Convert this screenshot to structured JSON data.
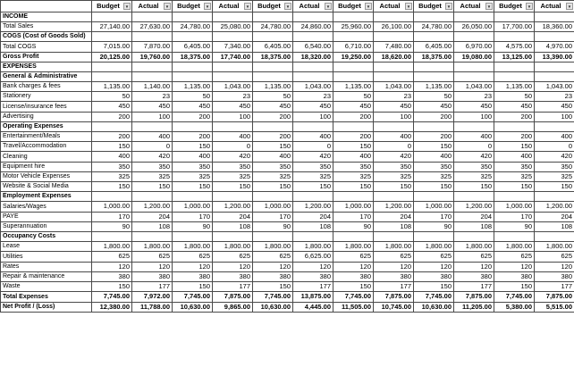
{
  "icons": {
    "filter_dropdown": "▼"
  },
  "table": {
    "columns": [
      "Budget",
      "Actual",
      "Budget",
      "Actual",
      "Budget",
      "Actual",
      "Budget",
      "Actual",
      "Budget",
      "Actual",
      "Budget",
      "Actual"
    ],
    "rows": [
      {
        "label": "INCOME",
        "type": "section",
        "values": []
      },
      {
        "label": "Total Sales",
        "type": "data",
        "values": [
          "27,140.00",
          "27,630.00",
          "24,780.00",
          "25,080.00",
          "24,780.00",
          "24,860.00",
          "25,960.00",
          "26,100.00",
          "24,780.00",
          "26,050.00",
          "17,700.00",
          "18,360.00"
        ]
      },
      {
        "label": "COGS (Cost of Goods Sold)",
        "type": "section",
        "values": []
      },
      {
        "label": "Total COGS",
        "type": "data",
        "values": [
          "7,015.00",
          "7,870.00",
          "6,405.00",
          "7,340.00",
          "6,405.00",
          "6,540.00",
          "6,710.00",
          "7,480.00",
          "6,405.00",
          "6,970.00",
          "4,575.00",
          "4,970.00"
        ]
      },
      {
        "label": "Gross Profit",
        "type": "total",
        "values": [
          "20,125.00",
          "19,760.00",
          "18,375.00",
          "17,740.00",
          "18,375.00",
          "18,320.00",
          "19,250.00",
          "18,620.00",
          "18,375.00",
          "19,080.00",
          "13,125.00",
          "13,390.00"
        ]
      },
      {
        "label": "EXPENSES",
        "type": "section",
        "values": []
      },
      {
        "label": "General & Administrative",
        "type": "section",
        "values": []
      },
      {
        "label": "Bank charges & fees",
        "type": "data",
        "values": [
          "1,135.00",
          "1,140.00",
          "1,135.00",
          "1,043.00",
          "1,135.00",
          "1,043.00",
          "1,135.00",
          "1,043.00",
          "1,135.00",
          "1,043.00",
          "1,135.00",
          "1,043.00"
        ]
      },
      {
        "label": "Stationery",
        "type": "data",
        "values": [
          "50",
          "23",
          "50",
          "23",
          "50",
          "23",
          "50",
          "23",
          "50",
          "23",
          "50",
          "23"
        ]
      },
      {
        "label": "License/insurance fees",
        "type": "data",
        "values": [
          "450",
          "450",
          "450",
          "450",
          "450",
          "450",
          "450",
          "450",
          "450",
          "450",
          "450",
          "450"
        ]
      },
      {
        "label": "Advertising",
        "type": "data",
        "values": [
          "200",
          "100",
          "200",
          "100",
          "200",
          "100",
          "200",
          "100",
          "200",
          "100",
          "200",
          "100"
        ]
      },
      {
        "label": "Operating Expenses",
        "type": "section",
        "values": []
      },
      {
        "label": "Entertainment/Meals",
        "type": "data",
        "values": [
          "200",
          "400",
          "200",
          "400",
          "200",
          "400",
          "200",
          "400",
          "200",
          "400",
          "200",
          "400"
        ]
      },
      {
        "label": "Travel/Accommodation",
        "type": "data",
        "values": [
          "150",
          "0",
          "150",
          "0",
          "150",
          "0",
          "150",
          "0",
          "150",
          "0",
          "150",
          "0"
        ]
      },
      {
        "label": "Cleaning",
        "type": "data",
        "values": [
          "400",
          "420",
          "400",
          "420",
          "400",
          "420",
          "400",
          "420",
          "400",
          "420",
          "400",
          "420"
        ]
      },
      {
        "label": "Equipment hire",
        "type": "data",
        "values": [
          "350",
          "350",
          "350",
          "350",
          "350",
          "350",
          "350",
          "350",
          "350",
          "350",
          "350",
          "350"
        ]
      },
      {
        "label": "Motor Vehicle Expenses",
        "type": "data",
        "values": [
          "325",
          "325",
          "325",
          "325",
          "325",
          "325",
          "325",
          "325",
          "325",
          "325",
          "325",
          "325"
        ]
      },
      {
        "label": "Website & Social Media",
        "type": "data",
        "values": [
          "150",
          "150",
          "150",
          "150",
          "150",
          "150",
          "150",
          "150",
          "150",
          "150",
          "150",
          "150"
        ]
      },
      {
        "label": "Employment Expenses",
        "type": "section",
        "values": []
      },
      {
        "label": "Salaries/Wages",
        "type": "data",
        "values": [
          "1,000.00",
          "1,200.00",
          "1,000.00",
          "1,200.00",
          "1,000.00",
          "1,200.00",
          "1,000.00",
          "1,200.00",
          "1,000.00",
          "1,200.00",
          "1,000.00",
          "1,200.00"
        ]
      },
      {
        "label": "PAYE",
        "type": "data",
        "values": [
          "170",
          "204",
          "170",
          "204",
          "170",
          "204",
          "170",
          "204",
          "170",
          "204",
          "170",
          "204"
        ]
      },
      {
        "label": "Superannuation",
        "type": "data",
        "values": [
          "90",
          "108",
          "90",
          "108",
          "90",
          "108",
          "90",
          "108",
          "90",
          "108",
          "90",
          "108"
        ]
      },
      {
        "label": "Occupancy Costs",
        "type": "section",
        "values": []
      },
      {
        "label": "Lease",
        "type": "data",
        "values": [
          "1,800.00",
          "1,800.00",
          "1,800.00",
          "1,800.00",
          "1,800.00",
          "1,800.00",
          "1,800.00",
          "1,800.00",
          "1,800.00",
          "1,800.00",
          "1,800.00",
          "1,800.00"
        ]
      },
      {
        "label": "Utilities",
        "type": "data",
        "values": [
          "625",
          "625",
          "625",
          "625",
          "625",
          "6,625.00",
          "625",
          "625",
          "625",
          "625",
          "625",
          "625"
        ]
      },
      {
        "label": "Rates",
        "type": "data",
        "values": [
          "120",
          "120",
          "120",
          "120",
          "120",
          "120",
          "120",
          "120",
          "120",
          "120",
          "120",
          "120"
        ]
      },
      {
        "label": "Repair & maintenance",
        "type": "data",
        "values": [
          "380",
          "380",
          "380",
          "380",
          "380",
          "380",
          "380",
          "380",
          "380",
          "380",
          "380",
          "380"
        ]
      },
      {
        "label": "Waste",
        "type": "data",
        "values": [
          "150",
          "177",
          "150",
          "177",
          "150",
          "177",
          "150",
          "177",
          "150",
          "177",
          "150",
          "177"
        ]
      },
      {
        "label": "Total Expenses",
        "type": "total",
        "values": [
          "7,745.00",
          "7,972.00",
          "7,745.00",
          "7,875.00",
          "7,745.00",
          "13,875.00",
          "7,745.00",
          "7,875.00",
          "7,745.00",
          "7,875.00",
          "7,745.00",
          "7,875.00"
        ]
      },
      {
        "label": "Net Profit / (Loss)",
        "type": "total",
        "values": [
          "12,380.00",
          "11,788.00",
          "10,630.00",
          "9,865.00",
          "10,630.00",
          "4,445.00",
          "11,505.00",
          "10,745.00",
          "10,630.00",
          "11,205.00",
          "5,380.00",
          "5,515.00"
        ]
      }
    ]
  }
}
